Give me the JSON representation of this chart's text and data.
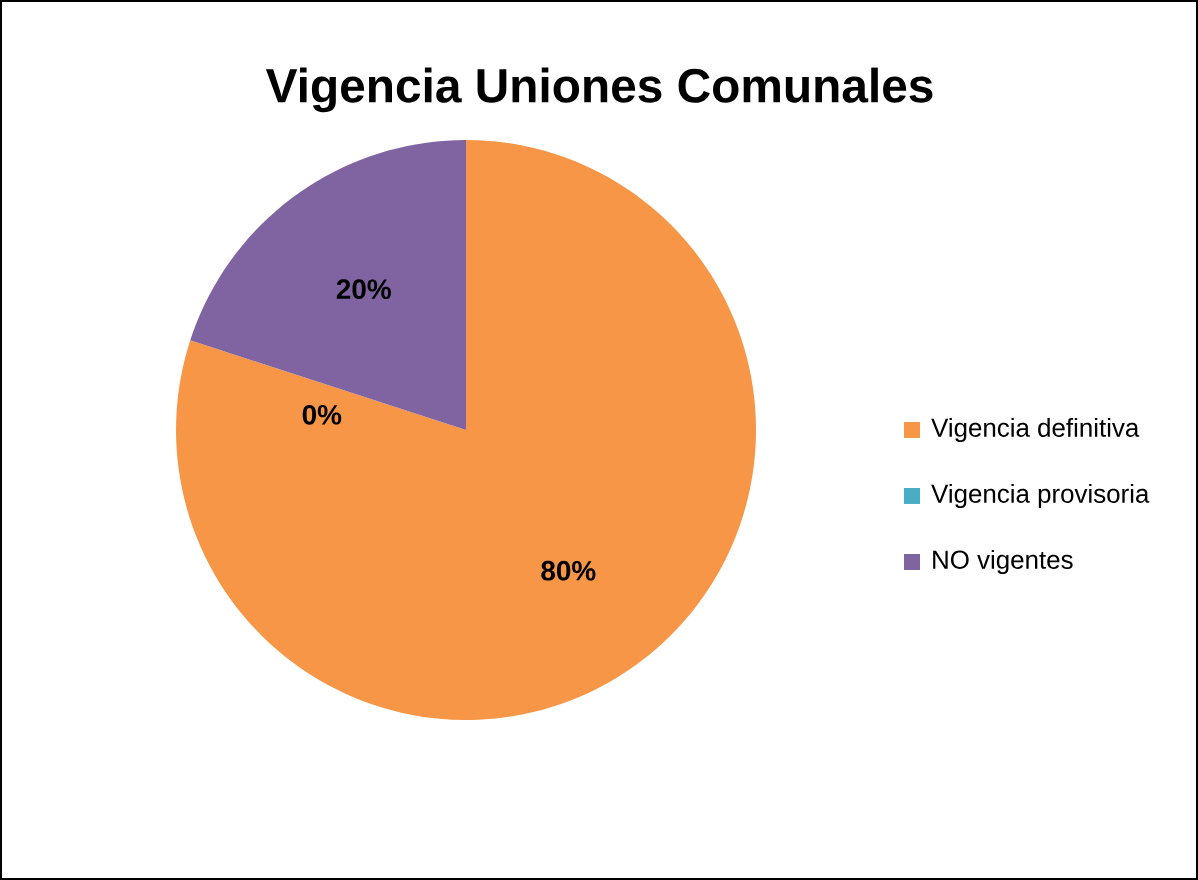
{
  "chart_data": {
    "type": "pie",
    "title": "Vigencia Uniones Comunales",
    "categories": [
      "Vigencia definitiva",
      "Vigencia provisoria",
      "NO vigentes"
    ],
    "values": [
      80,
      0,
      20
    ],
    "colors": [
      "#f79646",
      "#4bacc6",
      "#8064a2"
    ],
    "value_labels": [
      "80%",
      "0%",
      "20%"
    ],
    "legend": "right"
  }
}
